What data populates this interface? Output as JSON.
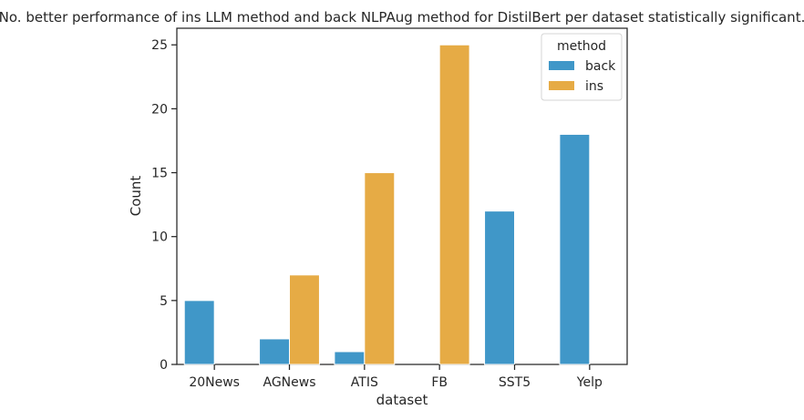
{
  "chart_data": {
    "type": "bar",
    "title": "No. better performance of ins LLM method and back NLPAug method for DistilBert per dataset statistically significant.",
    "xlabel": "dataset",
    "ylabel": "Count",
    "categories": [
      "20News",
      "AGNews",
      "ATIS",
      "FB",
      "SST5",
      "Yelp"
    ],
    "series": [
      {
        "name": "back",
        "values": [
          5,
          2,
          1,
          0,
          12,
          18
        ],
        "color": "#4097c8"
      },
      {
        "name": "ins",
        "values": [
          0,
          7,
          15,
          25,
          0,
          0
        ],
        "color": "#e6ab45"
      }
    ],
    "ylim": [
      0,
      26.3
    ],
    "yticks": [
      0,
      5,
      10,
      15,
      20,
      25
    ],
    "legend": {
      "title": "method",
      "placement": "top-right"
    },
    "grid": false
  }
}
